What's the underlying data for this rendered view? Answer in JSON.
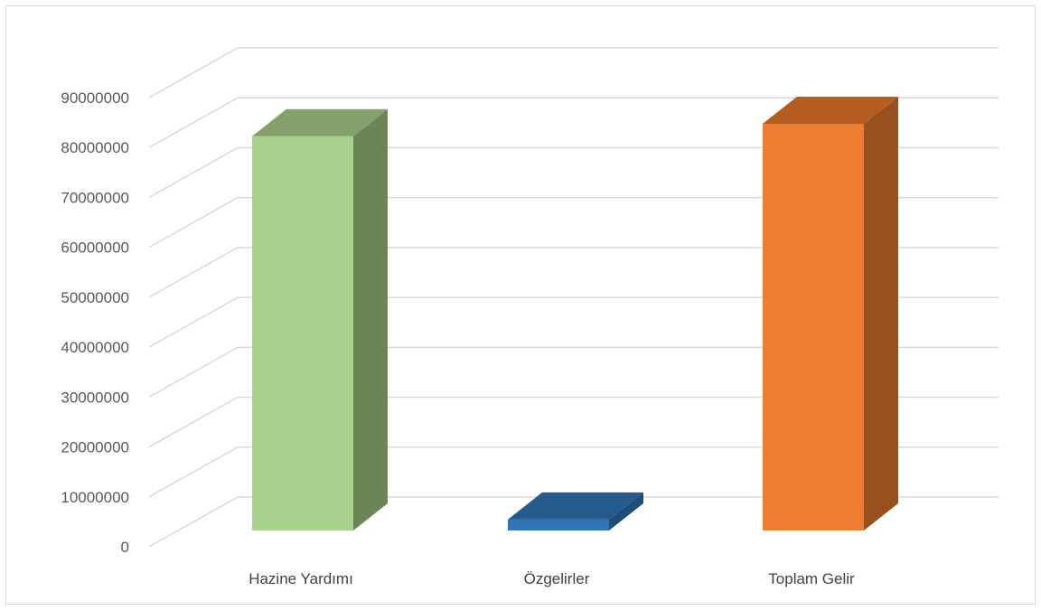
{
  "chart_data": {
    "type": "bar",
    "style": "3d-column",
    "title": "",
    "xlabel": "",
    "ylabel": "",
    "categories": [
      "Hazine Yardımı",
      "Özgelirler",
      "Toplam Gelir"
    ],
    "values": [
      79000000,
      2200000,
      81500000
    ],
    "ylim": [
      0,
      90000000
    ],
    "yticks": [
      0,
      10000000,
      20000000,
      30000000,
      40000000,
      50000000,
      60000000,
      70000000,
      80000000,
      90000000
    ],
    "ytick_labels": [
      "0",
      "10000000",
      "20000000",
      "30000000",
      "40000000",
      "50000000",
      "60000000",
      "70000000",
      "80000000",
      "90000000"
    ],
    "grid": true,
    "legend": "none",
    "colors": {
      "front": [
        "#a9d18e",
        "#2e75b6",
        "#ed7d31"
      ],
      "side": [
        "#6b8557",
        "#1f4e79",
        "#98501e"
      ],
      "top": [
        "#83a06d",
        "#245a8c",
        "#b55c20"
      ],
      "grid": "#d9d9d9",
      "frame": "#d9d9d9"
    }
  }
}
